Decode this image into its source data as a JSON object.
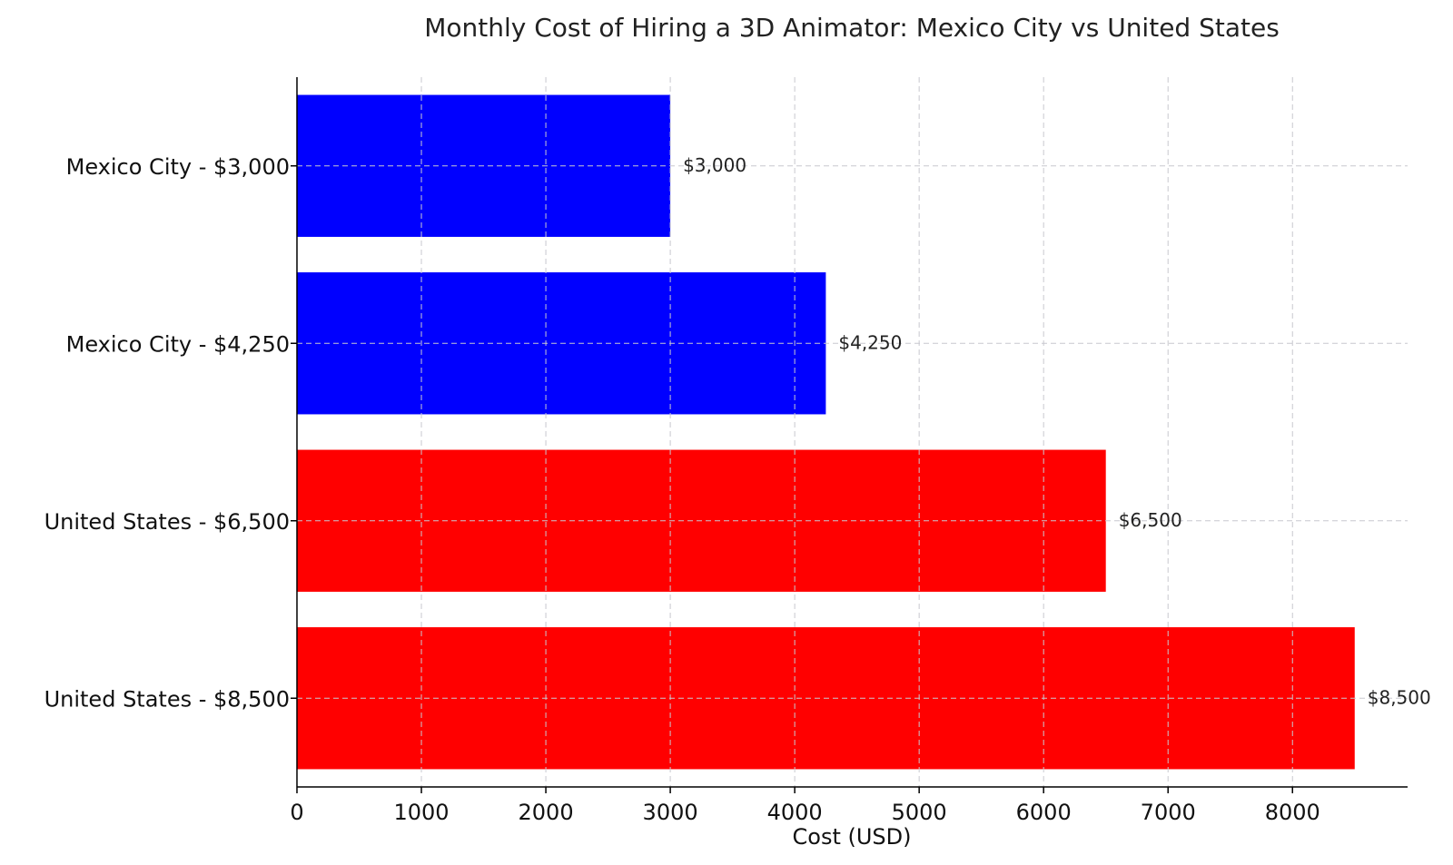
{
  "chart_data": {
    "type": "bar",
    "orientation": "horizontal",
    "title": "Monthly Cost of Hiring a 3D Animator: Mexico City vs United States",
    "xlabel": "Cost (USD)",
    "ylabel": "",
    "xlim": [
      0,
      8925
    ],
    "xticks": [
      0,
      1000,
      2000,
      3000,
      4000,
      5000,
      6000,
      7000,
      8000
    ],
    "grid": true,
    "categories": [
      "Mexico City - $3,000",
      "Mexico City - $4,250",
      "United States - $6,500",
      "United States - $8,500"
    ],
    "values": [
      3000,
      4250,
      6500,
      8500
    ],
    "data_labels": [
      "$3,000",
      "$4,250",
      "$6,500",
      "$8,500"
    ],
    "bar_colors": [
      "#0000ff",
      "#0000ff",
      "#ff0000",
      "#ff0000"
    ]
  }
}
